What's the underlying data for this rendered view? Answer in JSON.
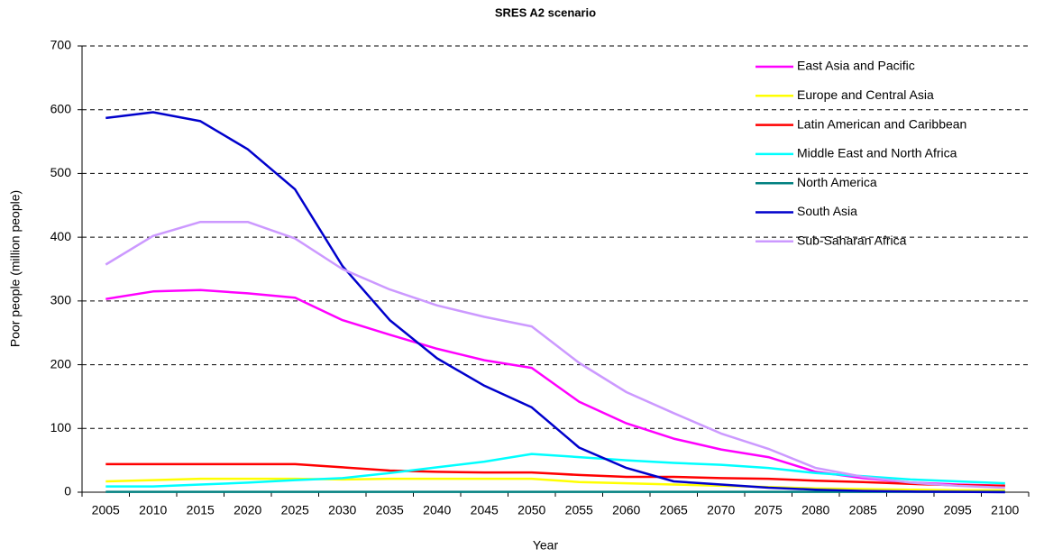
{
  "chart_data": {
    "type": "line",
    "title": "SRES A2 scenario",
    "x_label": "Year",
    "y_label": "Poor people (million people)",
    "categories": [
      "2005",
      "2010",
      "2015",
      "2020",
      "2025",
      "2030",
      "2035",
      "2040",
      "2045",
      "2050",
      "2055",
      "2060",
      "2065",
      "2070",
      "2075",
      "2080",
      "2085",
      "2090",
      "2095",
      "2100"
    ],
    "ylim": [
      0,
      700
    ],
    "yticks": [
      0,
      100,
      200,
      300,
      400,
      500,
      600,
      700
    ],
    "grid": true,
    "legend": "upper right",
    "series": [
      {
        "name": "East Asia and Pacific",
        "color": "#ff00ff",
        "values": [
          303,
          315,
          317,
          312,
          305,
          270,
          247,
          225,
          207,
          195,
          142,
          108,
          84,
          67,
          55,
          32,
          22,
          15,
          12,
          10
        ]
      },
      {
        "name": "Europe and Central Asia",
        "color": "#ffff00",
        "values": [
          17,
          19,
          21,
          21,
          21,
          20,
          21,
          21,
          21,
          21,
          16,
          14,
          12,
          10,
          8,
          6,
          5,
          4,
          3,
          3
        ]
      },
      {
        "name": "Latin American and Caribbean",
        "color": "#ff0000",
        "values": [
          44,
          44,
          44,
          44,
          44,
          39,
          34,
          32,
          31,
          31,
          27,
          24,
          24,
          22,
          21,
          18,
          16,
          13,
          11,
          10
        ]
      },
      {
        "name": "Middle East and North Africa",
        "color": "#00ffff",
        "values": [
          9,
          9,
          12,
          15,
          19,
          22,
          30,
          39,
          48,
          60,
          55,
          50,
          46,
          43,
          38,
          30,
          25,
          20,
          17,
          14
        ]
      },
      {
        "name": "North America",
        "color": "#008080",
        "values": [
          0.5,
          0.5,
          0.5,
          0.5,
          0.5,
          0.5,
          0.5,
          0.5,
          0.5,
          0.5,
          0.5,
          0.5,
          0.5,
          0.5,
          0.5,
          0.5,
          0.5,
          0.5,
          0.5,
          0.5
        ]
      },
      {
        "name": "South Asia",
        "color": "#0000cc",
        "values": [
          587,
          596,
          582,
          538,
          475,
          355,
          270,
          210,
          167,
          133,
          70,
          38,
          17,
          12,
          7,
          4,
          2,
          1,
          0.5,
          0
        ]
      },
      {
        "name": "Sub-Saharan Africa",
        "color": "#cc99ff",
        "values": [
          357,
          402,
          424,
          424,
          398,
          350,
          318,
          293,
          275,
          260,
          203,
          157,
          124,
          92,
          68,
          38,
          24,
          15,
          10,
          7
        ]
      }
    ]
  }
}
